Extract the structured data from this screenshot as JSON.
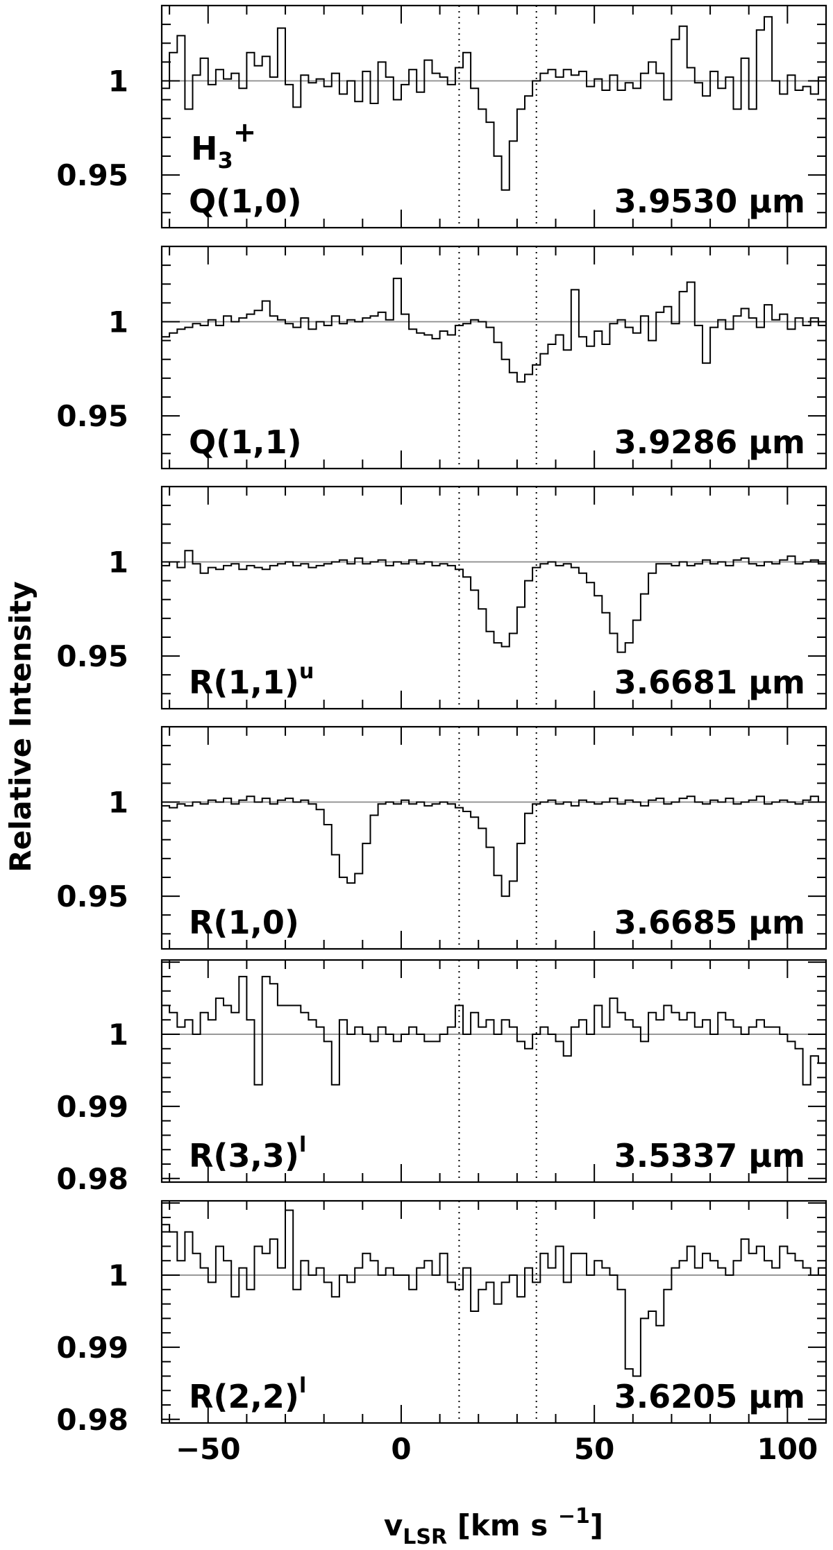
{
  "chart_data": {
    "type": "line",
    "style": "step",
    "xlabel": "v",
    "xlabel_subscript": "LSR",
    "xlabel_unit": "[km s",
    "xlabel_unit_exp": "−1",
    "xlabel_unit_close": "]",
    "ylabel": "Relative Intensity",
    "xlim": [
      -62,
      110
    ],
    "xticks": [
      -50,
      0,
      50,
      100
    ],
    "xtick_labels": [
      "−50",
      "0",
      "50",
      "100"
    ],
    "reference_velocities": [
      15,
      35
    ],
    "panels": [
      {
        "species": "H",
        "species_sub": "3",
        "species_sup": "+",
        "line": "Q(1,0)",
        "line_sup": "",
        "wavelength": "3.9530 μm",
        "ylim": [
          0.922,
          1.04
        ],
        "baseline": 1.0,
        "yticks": [
          1.0,
          0.95
        ],
        "ytick_labels": [
          "1",
          "0.95"
        ],
        "x": [
          -62,
          -60,
          -58,
          -56,
          -54,
          -52,
          -50,
          -48,
          -46,
          -44,
          -42,
          -40,
          -38,
          -36,
          -34,
          -32,
          -30,
          -28,
          -26,
          -24,
          -22,
          -20,
          -18,
          -16,
          -14,
          -12,
          -10,
          -8,
          -6,
          -4,
          -2,
          0,
          2,
          4,
          6,
          8,
          10,
          12,
          14,
          16,
          18,
          20,
          22,
          24,
          26,
          28,
          30,
          32,
          34,
          36,
          38,
          40,
          42,
          44,
          46,
          48,
          50,
          52,
          54,
          56,
          58,
          60,
          62,
          64,
          66,
          68,
          70,
          72,
          74,
          76,
          78,
          80,
          82,
          84,
          86,
          88,
          90,
          92,
          94,
          96,
          98,
          100,
          102,
          104,
          106,
          108
        ],
        "values": [
          0.996,
          1.015,
          1.024,
          0.985,
          1.003,
          1.012,
          0.998,
          1.006,
          1.001,
          1.004,
          0.996,
          1.015,
          1.008,
          1.013,
          1.002,
          1.028,
          0.998,
          0.986,
          1.003,
          0.999,
          1.001,
          0.997,
          1.004,
          0.993,
          1.0,
          0.989,
          1.005,
          0.988,
          1.01,
          1.002,
          0.99,
          0.998,
          1.006,
          0.994,
          1.011,
          1.004,
          1.002,
          0.998,
          1.007,
          1.015,
          0.996,
          0.985,
          0.978,
          0.96,
          0.942,
          0.968,
          0.985,
          0.992,
          1.0,
          1.004,
          1.006,
          1.002,
          1.006,
          1.003,
          1.005,
          0.997,
          1.001,
          0.995,
          1.003,
          0.995,
          0.999,
          0.996,
          1.004,
          1.01,
          1.004,
          0.99,
          1.022,
          1.029,
          1.007,
          0.999,
          0.992,
          1.005,
          0.996,
          1.002,
          0.985,
          1.012,
          0.985,
          1.027,
          1.034,
          1.0,
          0.993,
          1.003,
          0.995,
          0.997,
          0.993,
          1.002
        ]
      },
      {
        "species": "",
        "species_sub": "",
        "species_sup": "",
        "line": "Q(1,1)",
        "line_sup": "",
        "wavelength": "3.9286 μm",
        "ylim": [
          0.922,
          1.04
        ],
        "baseline": 1.0,
        "yticks": [
          1.0,
          0.95
        ],
        "ytick_labels": [
          "1",
          "0.95"
        ],
        "x": [
          -62,
          -60,
          -58,
          -56,
          -54,
          -52,
          -50,
          -48,
          -46,
          -44,
          -42,
          -40,
          -38,
          -36,
          -34,
          -32,
          -30,
          -28,
          -26,
          -24,
          -22,
          -20,
          -18,
          -16,
          -14,
          -12,
          -10,
          -8,
          -6,
          -4,
          -2,
          0,
          2,
          4,
          6,
          8,
          10,
          12,
          14,
          16,
          18,
          20,
          22,
          24,
          26,
          28,
          30,
          32,
          34,
          36,
          38,
          40,
          42,
          44,
          46,
          48,
          50,
          52,
          54,
          56,
          58,
          60,
          62,
          64,
          66,
          68,
          70,
          72,
          74,
          76,
          78,
          80,
          82,
          84,
          86,
          88,
          90,
          92,
          94,
          96,
          98,
          100,
          102,
          104,
          106,
          108
        ],
        "values": [
          0.992,
          0.994,
          0.996,
          0.997,
          0.999,
          0.998,
          1.001,
          0.998,
          1.003,
          1.0,
          1.002,
          1.004,
          1.006,
          1.011,
          1.003,
          1.001,
          0.999,
          0.997,
          1.002,
          0.996,
          1.0,
          0.998,
          1.003,
          0.999,
          1.001,
          1.0,
          1.002,
          1.003,
          1.005,
          1.001,
          1.023,
          1.004,
          0.996,
          0.994,
          0.993,
          0.991,
          0.995,
          0.993,
          0.998,
          0.999,
          1.001,
          1.0,
          0.997,
          0.989,
          0.98,
          0.973,
          0.968,
          0.972,
          0.977,
          0.983,
          0.988,
          0.993,
          0.985,
          1.017,
          0.992,
          0.987,
          0.995,
          0.988,
          0.999,
          1.001,
          0.997,
          0.994,
          1.003,
          0.99,
          1.005,
          1.008,
          0.999,
          1.016,
          1.021,
          0.998,
          0.978,
          0.997,
          1.001,
          0.996,
          1.003,
          1.007,
          1.002,
          0.997,
          1.009,
          1.001,
          1.004,
          0.996,
          1.002,
          0.998,
          1.002,
          0.998
        ]
      },
      {
        "species": "",
        "species_sub": "",
        "species_sup": "",
        "line": "R(1,1)",
        "line_sup": "u",
        "wavelength": "3.6681 μm",
        "ylim": [
          0.922,
          1.04
        ],
        "baseline": 1.0,
        "yticks": [
          1.0,
          0.95
        ],
        "ytick_labels": [
          "1",
          "0.95"
        ],
        "x": [
          -62,
          -60,
          -58,
          -56,
          -54,
          -52,
          -50,
          -48,
          -46,
          -44,
          -42,
          -40,
          -38,
          -36,
          -34,
          -32,
          -30,
          -28,
          -26,
          -24,
          -22,
          -20,
          -18,
          -16,
          -14,
          -12,
          -10,
          -8,
          -6,
          -4,
          -2,
          0,
          2,
          4,
          6,
          8,
          10,
          12,
          14,
          16,
          18,
          20,
          22,
          24,
          26,
          28,
          30,
          32,
          34,
          36,
          38,
          40,
          42,
          44,
          46,
          48,
          50,
          52,
          54,
          56,
          58,
          60,
          62,
          64,
          66,
          68,
          70,
          72,
          74,
          76,
          78,
          80,
          82,
          84,
          86,
          88,
          90,
          92,
          94,
          96,
          98,
          100,
          102,
          104,
          106,
          108
        ],
        "values": [
          0.998,
          1.0,
          0.997,
          1.006,
          0.999,
          0.994,
          0.997,
          0.996,
          0.998,
          0.999,
          0.996,
          0.998,
          0.997,
          0.996,
          0.998,
          0.999,
          1.0,
          0.998,
          0.999,
          0.997,
          0.998,
          0.999,
          1.0,
          1.001,
          0.999,
          1.002,
          0.999,
          1.0,
          1.001,
          0.998,
          1.0,
          0.999,
          1.001,
          0.999,
          1.0,
          0.998,
          0.999,
          0.998,
          0.996,
          0.992,
          0.985,
          0.975,
          0.963,
          0.957,
          0.955,
          0.962,
          0.976,
          0.99,
          0.997,
          0.999,
          1.0,
          0.998,
          0.999,
          0.997,
          0.994,
          0.989,
          0.982,
          0.973,
          0.962,
          0.952,
          0.957,
          0.969,
          0.983,
          0.994,
          0.999,
          0.999,
          0.998,
          1.0,
          0.998,
          0.999,
          1.001,
          0.999,
          1.0,
          0.998,
          1.001,
          1.002,
          0.999,
          0.998,
          1.0,
          0.999,
          1.001,
          1.003,
          0.999,
          1.0,
          1.001,
          0.999
        ]
      },
      {
        "species": "",
        "species_sub": "",
        "species_sup": "",
        "line": "R(1,0)",
        "line_sup": "",
        "wavelength": "3.6685 μm",
        "ylim": [
          0.922,
          1.04
        ],
        "baseline": 1.0,
        "yticks": [
          1.0,
          0.95
        ],
        "ytick_labels": [
          "1",
          "0.95"
        ],
        "x": [
          -62,
          -60,
          -58,
          -56,
          -54,
          -52,
          -50,
          -48,
          -46,
          -44,
          -42,
          -40,
          -38,
          -36,
          -34,
          -32,
          -30,
          -28,
          -26,
          -24,
          -22,
          -20,
          -18,
          -16,
          -14,
          -12,
          -10,
          -8,
          -6,
          -4,
          -2,
          0,
          2,
          4,
          6,
          8,
          10,
          12,
          14,
          16,
          18,
          20,
          22,
          24,
          26,
          28,
          30,
          32,
          34,
          36,
          38,
          40,
          42,
          44,
          46,
          48,
          50,
          52,
          54,
          56,
          58,
          60,
          62,
          64,
          66,
          68,
          70,
          72,
          74,
          76,
          78,
          80,
          82,
          84,
          86,
          88,
          90,
          92,
          94,
          96,
          98,
          100,
          102,
          104,
          106,
          108
        ],
        "values": [
          0.998,
          0.997,
          0.999,
          0.998,
          1.0,
          0.999,
          1.001,
          1.0,
          1.002,
          0.999,
          1.001,
          1.003,
          1.0,
          1.002,
          0.999,
          1.001,
          1.002,
          1.0,
          1.001,
          0.999,
          0.996,
          0.988,
          0.972,
          0.96,
          0.957,
          0.962,
          0.978,
          0.993,
          0.999,
          1.0,
          0.999,
          1.001,
          0.999,
          1.0,
          0.998,
          0.999,
          1.0,
          0.999,
          0.997,
          0.995,
          0.992,
          0.986,
          0.976,
          0.961,
          0.95,
          0.958,
          0.978,
          0.994,
          0.999,
          1.0,
          1.001,
          0.999,
          1.0,
          0.998,
          1.001,
          1.0,
          0.999,
          1.0,
          1.002,
          0.999,
          1.001,
          1.0,
          0.998,
          1.001,
          1.002,
          0.999,
          1.0,
          1.002,
          1.003,
          1.0,
          0.999,
          1.001,
          1.0,
          1.002,
          0.999,
          1.0,
          1.001,
          1.003,
          0.999,
          1.0,
          1.001,
          1.0,
          0.999,
          1.001,
          1.003,
          1.0
        ]
      },
      {
        "species": "",
        "species_sub": "",
        "species_sup": "",
        "line": "R(3,3)",
        "line_sup": "l",
        "wavelength": "3.5337 μm",
        "ylim": [
          0.9795,
          1.0103
        ],
        "baseline": 1.0,
        "yticks": [
          1.0,
          0.99,
          0.98
        ],
        "ytick_labels": [
          "1",
          "0.99",
          "0.98"
        ],
        "x": [
          -62,
          -60,
          -58,
          -56,
          -54,
          -52,
          -50,
          -48,
          -46,
          -44,
          -42,
          -40,
          -38,
          -36,
          -34,
          -32,
          -30,
          -28,
          -26,
          -24,
          -22,
          -20,
          -18,
          -16,
          -14,
          -12,
          -10,
          -8,
          -6,
          -4,
          -2,
          0,
          2,
          4,
          6,
          8,
          10,
          12,
          14,
          16,
          18,
          20,
          22,
          24,
          26,
          28,
          30,
          32,
          34,
          36,
          38,
          40,
          42,
          44,
          46,
          48,
          50,
          52,
          54,
          56,
          58,
          60,
          62,
          64,
          66,
          68,
          70,
          72,
          74,
          76,
          78,
          80,
          82,
          84,
          86,
          88,
          90,
          92,
          94,
          96,
          98,
          100,
          102,
          104,
          106,
          108
        ],
        "values": [
          1.004,
          1.003,
          1.001,
          1.002,
          1.0,
          1.003,
          1.002,
          1.005,
          1.004,
          1.003,
          1.008,
          1.002,
          0.993,
          1.008,
          1.007,
          1.004,
          1.004,
          1.004,
          1.003,
          1.002,
          1.001,
          0.999,
          0.993,
          1.002,
          1.0,
          1.001,
          1.0,
          0.999,
          1.001,
          1.0,
          0.999,
          1.0,
          1.001,
          1.0,
          0.999,
          0.999,
          1.0,
          1.001,
          1.004,
          1.0,
          1.003,
          1.001,
          1.002,
          1.0,
          1.002,
          1.001,
          0.999,
          0.998,
          1.0,
          1.001,
          1.0,
          0.999,
          0.997,
          1.001,
          1.002,
          1.0,
          1.004,
          1.001,
          1.005,
          1.003,
          1.002,
          1.001,
          0.999,
          1.003,
          1.002,
          1.004,
          1.003,
          1.002,
          1.003,
          1.001,
          1.002,
          1.0,
          1.003,
          1.002,
          1.001,
          1.0,
          1.001,
          1.002,
          1.001,
          1.001,
          1.0,
          0.999,
          0.998,
          0.993,
          0.997,
          0.996
        ]
      },
      {
        "species": "",
        "species_sub": "",
        "species_sup": "",
        "line": "R(2,2)",
        "line_sup": "l",
        "wavelength": "3.6205 μm",
        "ylim": [
          0.9795,
          1.0103
        ],
        "baseline": 1.0,
        "yticks": [
          1.0,
          0.99,
          0.98
        ],
        "ytick_labels": [
          "1",
          "0.99",
          "0.98"
        ],
        "x": [
          -62,
          -60,
          -58,
          -56,
          -54,
          -52,
          -50,
          -48,
          -46,
          -44,
          -42,
          -40,
          -38,
          -36,
          -34,
          -32,
          -30,
          -28,
          -26,
          -24,
          -22,
          -20,
          -18,
          -16,
          -14,
          -12,
          -10,
          -8,
          -6,
          -4,
          -2,
          0,
          2,
          4,
          6,
          8,
          10,
          12,
          14,
          16,
          18,
          20,
          22,
          24,
          26,
          28,
          30,
          32,
          34,
          36,
          38,
          40,
          42,
          44,
          46,
          48,
          50,
          52,
          54,
          56,
          58,
          60,
          62,
          64,
          66,
          68,
          70,
          72,
          74,
          76,
          78,
          80,
          82,
          84,
          86,
          88,
          90,
          92,
          94,
          96,
          98,
          100,
          102,
          104,
          106,
          108
        ],
        "values": [
          1.007,
          1.006,
          1.002,
          1.006,
          1.003,
          1.001,
          0.999,
          1.004,
          1.002,
          0.997,
          1.001,
          0.998,
          1.004,
          1.003,
          1.005,
          1.001,
          1.009,
          0.998,
          1.002,
          1.0,
          1.001,
          0.999,
          0.997,
          1.0,
          0.999,
          1.001,
          1.003,
          1.002,
          1.0,
          1.001,
          1.0,
          1.0,
          0.998,
          1.001,
          1.002,
          1.0,
          1.003,
          0.999,
          0.998,
          1.001,
          0.995,
          0.998,
          0.999,
          0.996,
          0.999,
          1.0,
          0.997,
          1.001,
          0.999,
          1.003,
          1.001,
          1.004,
          0.999,
          1.003,
          1.003,
          1.0,
          1.002,
          1.001,
          1.0,
          0.998,
          0.987,
          0.986,
          0.994,
          0.995,
          0.993,
          0.998,
          1.001,
          1.002,
          1.004,
          1.001,
          1.003,
          1.002,
          1.001,
          1.0,
          1.002,
          1.005,
          1.003,
          1.004,
          1.002,
          1.001,
          1.004,
          1.003,
          1.002,
          1.001,
          1.0,
          1.001
        ]
      }
    ]
  }
}
